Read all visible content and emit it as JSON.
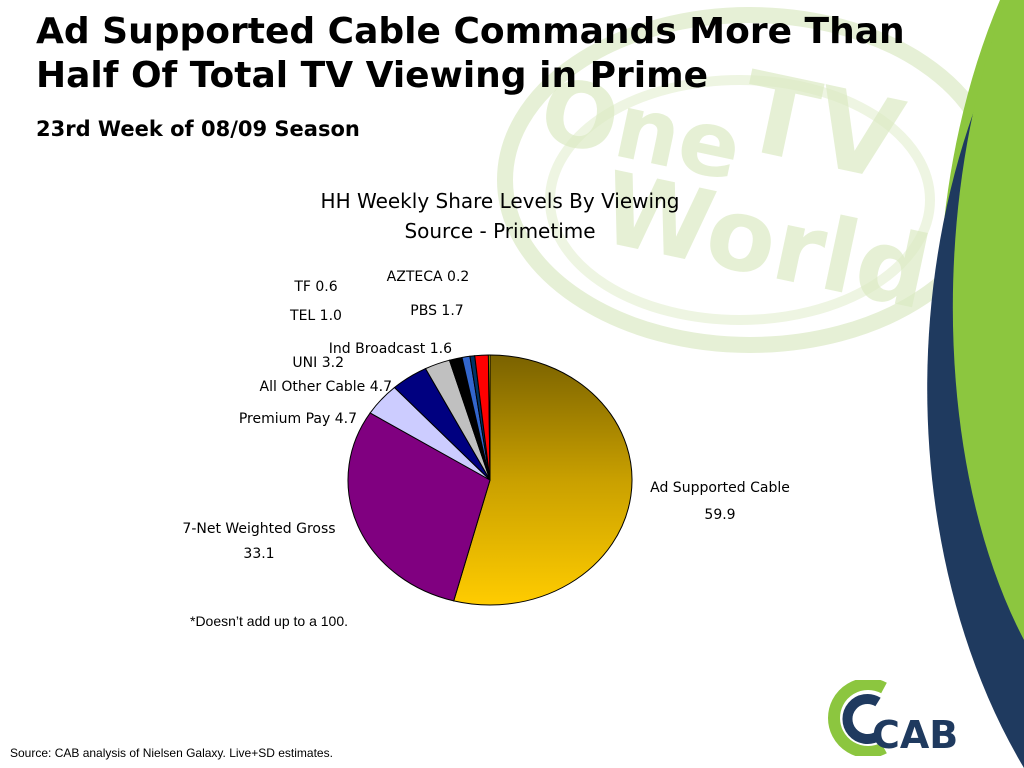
{
  "slide": {
    "title_line1": "Ad Supported Cable Commands More Than",
    "title_line2": "Half Of Total TV Viewing in Prime",
    "subtitle": "23rd Week of 08/09 Season",
    "footnote": "*Doesn’t add up to a 100.",
    "source": "Source: CAB analysis of Nielsen Galaxy. Live+SD estimates.",
    "watermark": [
      "One",
      "TV",
      "World"
    ],
    "logo_text": "CAB",
    "colors": {
      "accent_green": "#8cc63f",
      "accent_navy": "#1f3a5f",
      "watermark_green": "#dcebc4"
    }
  },
  "chart_data": {
    "type": "pie",
    "title_line1": "HH Weekly Share Levels By Viewing",
    "title_line2": "Source - Primetime",
    "slices": [
      {
        "name": "Ad Supported Cable",
        "value": 59.9,
        "label": "Ad Supported Cable",
        "value_text": "59.9",
        "color": "#f2c200"
      },
      {
        "name": "7-Net Weighted Gross",
        "value": 33.1,
        "label": "7-Net Weighted Gross",
        "value_text": "33.1",
        "color": "#800080"
      },
      {
        "name": "Premium Pay",
        "value": 4.7,
        "label": "Premium Pay 4.7",
        "color": "#ccccff"
      },
      {
        "name": "All Other Cable",
        "value": 4.7,
        "label": "All Other Cable 4.7",
        "color": "#000080"
      },
      {
        "name": "UNI",
        "value": 3.2,
        "label": "UNI 3.2",
        "color": "#c0c0c0"
      },
      {
        "name": "Ind Broadcast",
        "value": 1.6,
        "label": "Ind Broadcast 1.6",
        "color": "#000000"
      },
      {
        "name": "TEL",
        "value": 1.0,
        "label": "TEL 1.0",
        "color": "#3366cc"
      },
      {
        "name": "TF",
        "value": 0.6,
        "label": "TF 0.6",
        "color": "#003366"
      },
      {
        "name": "PBS",
        "value": 1.7,
        "label": "PBS 1.7",
        "color": "#ff0000"
      },
      {
        "name": "AZTECA",
        "value": 0.2,
        "label": "AZTECA 0.2",
        "color": "#ffff00"
      }
    ]
  }
}
